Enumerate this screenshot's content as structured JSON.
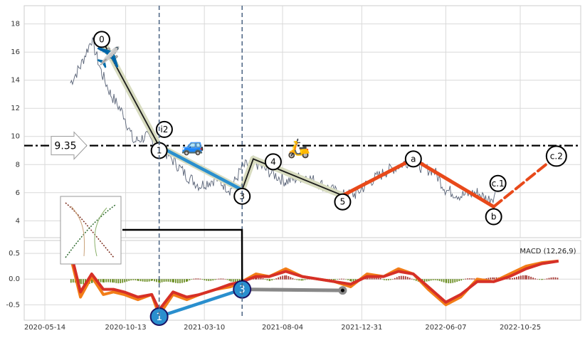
{
  "chart_data": [
    {
      "type": "line",
      "title": "",
      "xlabel": "",
      "ylabel": "",
      "x_ticks": [
        "2020-05-14",
        "2020-10-13",
        "2021-03-10",
        "2021-08-04",
        "2021-12-31",
        "2022-06-07",
        "2022-10-25"
      ],
      "y_ticks": [
        4,
        6,
        8,
        10,
        12,
        14,
        16,
        18
      ],
      "ylim": [
        2.8,
        19.3
      ],
      "grid": true,
      "series": [
        {
          "name": "",
          "color": "#5a6478",
          "x": [
            "2020-07-01",
            "2020-07-20",
            "2020-08-10",
            "2020-08-29",
            "2020-09-15",
            "2020-10-10",
            "2020-10-28",
            "2020-11-20",
            "2020-12-15",
            "2021-01-10",
            "2021-02-05",
            "2021-03-01",
            "2021-04-01",
            "2021-04-28",
            "2021-05-20",
            "2021-06-10",
            "2021-07-10",
            "2021-08-10",
            "2021-09-15",
            "2021-10-20",
            "2021-11-25",
            "2021-12-20",
            "2022-01-15",
            "2022-02-15",
            "2022-03-15",
            "2022-04-07",
            "2022-04-25",
            "2022-05-15",
            "2022-06-07",
            "2022-07-05",
            "2022-08-05",
            "2022-08-25",
            "2022-09-10"
          ],
          "y": [
            13.8,
            15.0,
            16.9,
            14.5,
            13.0,
            11.5,
            9.6,
            10.0,
            9.3,
            8.3,
            7.2,
            6.5,
            7.0,
            6.2,
            7.8,
            8.2,
            7.5,
            6.8,
            7.2,
            6.5,
            5.8,
            5.9,
            6.8,
            7.5,
            8.0,
            8.4,
            7.7,
            7.6,
            6.2,
            5.8,
            6.0,
            5.5,
            5.9
          ]
        }
      ],
      "wave_points": [
        {
          "label": "0",
          "x": "2020-08-29",
          "y": 16.9
        },
        {
          "label": "1",
          "x": "2020-12-15",
          "y": 9.3
        },
        {
          "label": "i2",
          "x": "2020-12-18",
          "y": 10.5
        },
        {
          "label": "3",
          "x": "2021-05-20",
          "y": 6.2
        },
        {
          "label": "4",
          "x": "2021-06-10",
          "y": 8.4
        },
        {
          "label": "5",
          "x": "2021-11-25",
          "y": 5.8
        },
        {
          "label": "a",
          "x": "2022-04-07",
          "y": 8.4
        },
        {
          "label": "c.1",
          "x": "2022-09-05",
          "y": 6.0
        },
        {
          "label": "b",
          "x": "2022-09-05",
          "y": 5.0
        },
        {
          "label": "c.2",
          "x": "2023-01-01",
          "y": 8.6
        }
      ],
      "horizontal_level": {
        "value": 9.35,
        "label": "9.35"
      },
      "vertical_markers": [
        "2020-12-15",
        "2021-05-20"
      ],
      "legend": "none"
    },
    {
      "type": "line",
      "title": "MACD (12,26,9)",
      "xlabel": "",
      "ylabel": "",
      "y_ticks": [
        -0.5,
        0.0,
        0.5
      ],
      "ylim": [
        -0.8,
        0.75
      ],
      "grid": true,
      "series": [
        {
          "name": "",
          "color": "#f27d17",
          "x": [
            "2020-07-01",
            "2020-07-20",
            "2020-08-10",
            "2020-09-01",
            "2020-09-20",
            "2020-10-10",
            "2020-11-05",
            "2020-12-01",
            "2020-12-15",
            "2021-01-10",
            "2021-02-05",
            "2021-03-01",
            "2021-04-01",
            "2021-04-28",
            "2021-05-20",
            "2021-06-15",
            "2021-07-10",
            "2021-08-10",
            "2021-09-10",
            "2021-10-10",
            "2021-11-10",
            "2021-12-10",
            "2022-01-10",
            "2022-02-10",
            "2022-03-10",
            "2022-04-07",
            "2022-05-05",
            "2022-06-07",
            "2022-07-05",
            "2022-08-05",
            "2022-09-05",
            "2022-10-05",
            "2022-11-05",
            "2022-12-05",
            "2023-01-05"
          ],
          "y": [
            0.45,
            -0.35,
            0.05,
            -0.3,
            -0.25,
            -0.3,
            -0.4,
            -0.3,
            -0.7,
            -0.3,
            -0.4,
            -0.3,
            -0.2,
            -0.15,
            -0.05,
            0.1,
            0.05,
            0.2,
            0.05,
            0.0,
            -0.05,
            -0.15,
            0.1,
            0.05,
            0.2,
            0.1,
            -0.2,
            -0.5,
            -0.35,
            0.0,
            -0.05,
            0.1,
            0.25,
            0.32,
            0.35
          ]
        },
        {
          "name": "",
          "color": "#d63027",
          "x": [
            "2020-07-01",
            "2020-07-20",
            "2020-08-10",
            "2020-09-01",
            "2020-09-20",
            "2020-10-10",
            "2020-11-05",
            "2020-12-01",
            "2020-12-15",
            "2021-01-10",
            "2021-02-05",
            "2021-03-01",
            "2021-04-01",
            "2021-04-28",
            "2021-05-20",
            "2021-06-15",
            "2021-07-10",
            "2021-08-10",
            "2021-09-10",
            "2021-10-10",
            "2021-11-10",
            "2021-12-10",
            "2022-01-10",
            "2022-02-10",
            "2022-03-10",
            "2022-04-07",
            "2022-05-05",
            "2022-06-07",
            "2022-07-05",
            "2022-08-05",
            "2022-09-05",
            "2022-10-05",
            "2022-11-05",
            "2022-12-05",
            "2023-01-05"
          ],
          "y": [
            0.55,
            -0.25,
            0.1,
            -0.2,
            -0.2,
            -0.25,
            -0.35,
            -0.3,
            -0.6,
            -0.25,
            -0.35,
            -0.3,
            -0.2,
            -0.1,
            -0.05,
            0.05,
            0.05,
            0.15,
            0.05,
            0.0,
            -0.05,
            -0.1,
            0.05,
            0.05,
            0.15,
            0.1,
            -0.15,
            -0.45,
            -0.3,
            -0.05,
            -0.05,
            0.05,
            0.2,
            0.3,
            0.35
          ]
        }
      ],
      "wave_points": [
        {
          "label": "1",
          "x": "2020-12-15",
          "y": -0.73
        },
        {
          "label": "3",
          "x": "2021-05-20",
          "y": -0.2
        }
      ],
      "legend": "none"
    }
  ]
}
